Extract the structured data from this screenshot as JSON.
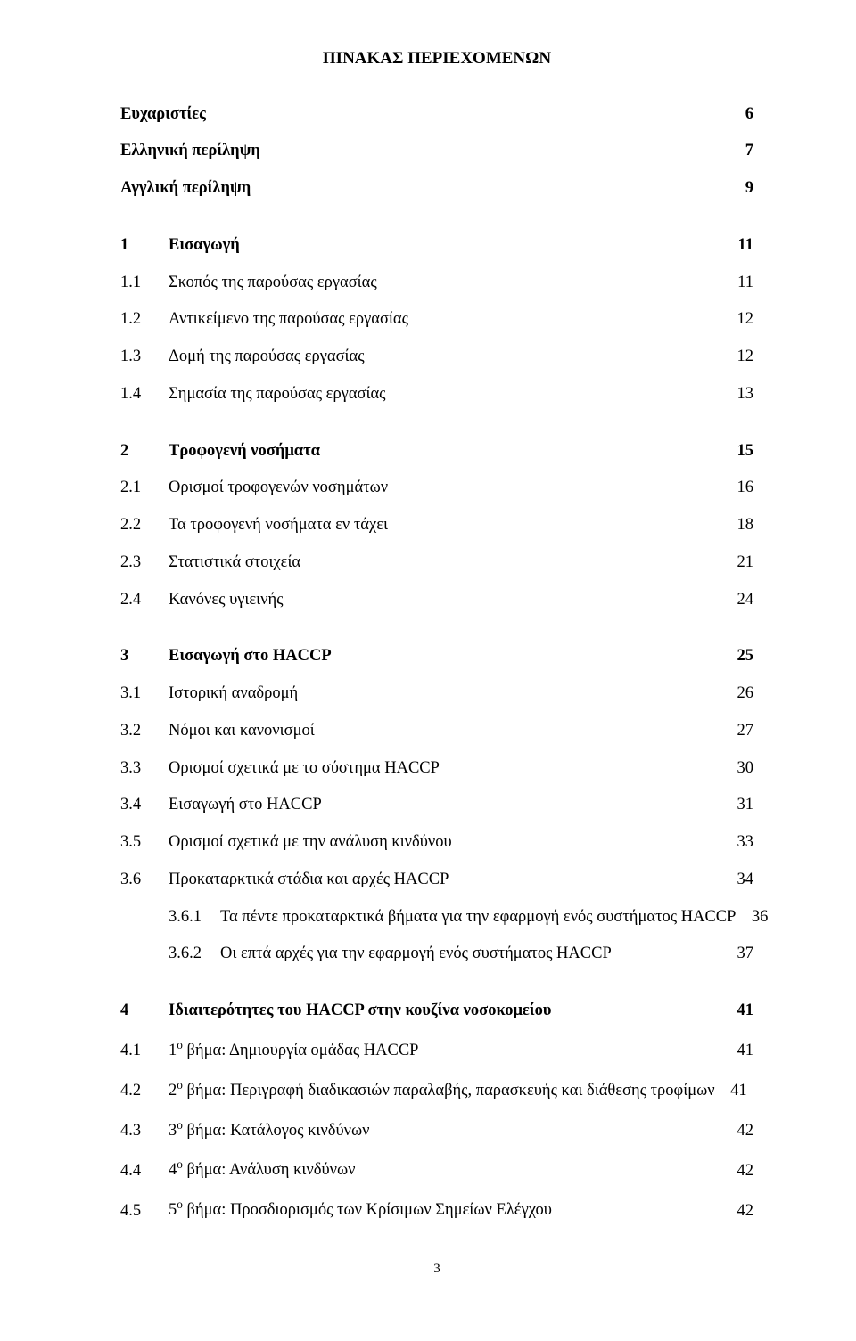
{
  "title": "ΠΙΝΑΚΑΣ ΠΕΡΙΕΧΟΜΕΝΩΝ",
  "page_number": "3",
  "front": [
    {
      "label": "Ευχαριστίες",
      "page": "6",
      "bold": true
    },
    {
      "label": "Ελληνική περίληψη",
      "page": "7",
      "bold": true
    },
    {
      "label": "Αγγλική περίληψη",
      "page": "9",
      "bold": true
    }
  ],
  "sections": [
    {
      "num": "1",
      "label": "Εισαγωγή",
      "page": "11",
      "bold": true,
      "items": [
        {
          "num": "1.1",
          "label": "Σκοπός της παρούσας εργασίας",
          "page": "11"
        },
        {
          "num": "1.2",
          "label": "Αντικείμενο της παρούσας εργασίας",
          "page": "12"
        },
        {
          "num": "1.3",
          "label": "Δομή της παρούσας εργασίας",
          "page": "12"
        },
        {
          "num": "1.4",
          "label": "Σημασία της παρούσας εργασίας",
          "page": "13"
        }
      ]
    },
    {
      "num": "2",
      "label": "Τροφογενή νοσήματα",
      "page": "15",
      "bold": true,
      "items": [
        {
          "num": "2.1",
          "label": "Ορισμοί τροφογενών νοσημάτων",
          "page": "16"
        },
        {
          "num": "2.2",
          "label": "Τα τροφογενή νοσήματα εν τάχει",
          "page": "18"
        },
        {
          "num": "2.3",
          "label": "Στατιστικά στοιχεία",
          "page": "21"
        },
        {
          "num": "2.4",
          "label": "Κανόνες υγιεινής",
          "page": "24"
        }
      ]
    },
    {
      "num": "3",
      "label": "Εισαγωγή στο HACCP",
      "page": "25",
      "bold": true,
      "items": [
        {
          "num": "3.1",
          "label": "Ιστορική αναδρομή",
          "page": "26"
        },
        {
          "num": "3.2",
          "label": "Νόμοι και κανονισμοί",
          "page": "27"
        },
        {
          "num": "3.3",
          "label": "Ορισμοί σχετικά με το σύστημα HACCP",
          "page": "30"
        },
        {
          "num": "3.4",
          "label": "Εισαγωγή στο HACCP",
          "page": "31"
        },
        {
          "num": "3.5",
          "label": "Ορισμοί σχετικά με την ανάλυση κινδύνου",
          "page": "33"
        },
        {
          "num": "3.6",
          "label": "Προκαταρκτικά στάδια και αρχές HACCP",
          "page": "34"
        }
      ],
      "subitems": [
        {
          "num": "3.6.1",
          "label": "Τα πέντε προκαταρκτικά βήματα για την εφαρμογή ενός συστήματος HACCP",
          "page": "36",
          "no_leader": true
        },
        {
          "num": "3.6.2",
          "label": "Οι επτά αρχές για την εφαρμογή ενός συστήματος HACCP",
          "page": "37"
        }
      ]
    },
    {
      "num": "4",
      "label": "Ιδιαιτερότητες του HACCP στην κουζίνα νοσοκομείου",
      "page": "41",
      "bold": true,
      "items": [
        {
          "num": "4.1",
          "label_html": "1<sup>ο</sup> βήμα: Δημιουργία ομάδας HACCP",
          "page": "41"
        },
        {
          "num": "4.2",
          "label_html": "2<sup>ο</sup> βήμα: Περιγραφή διαδικασιών παραλαβής, παρασκευής και διάθεσης τροφίμων",
          "page": "41",
          "no_leader": true
        },
        {
          "num": "4.3",
          "label_html": "3<sup>ο</sup> βήμα: Κατάλογος κινδύνων",
          "page": "42"
        },
        {
          "num": "4.4",
          "label_html": "4<sup>ο</sup> βήμα: Ανάλυση κινδύνων",
          "page": "42"
        },
        {
          "num": "4.5",
          "label_html": "5<sup>ο</sup> βήμα: Προσδιορισμός των Κρίσιμων Σημείων Ελέγχου",
          "page": "42"
        }
      ]
    }
  ]
}
